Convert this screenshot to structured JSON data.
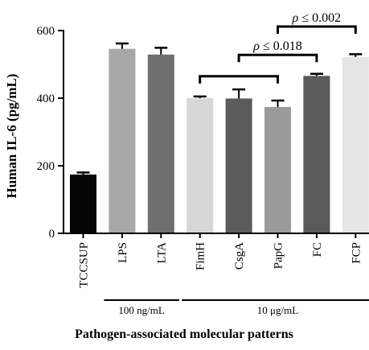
{
  "chart_data": {
    "type": "bar",
    "categories": [
      "TCCSUP",
      "LPS",
      "LTA",
      "FimH",
      "CsgA",
      "PapG",
      "FC",
      "FCP"
    ],
    "values": [
      174,
      546,
      529,
      400,
      399,
      374,
      466,
      522
    ],
    "errors": [
      6,
      16,
      20,
      5,
      27,
      19,
      6,
      8
    ],
    "colors": [
      "#050505",
      "#a8a8a8",
      "#6f6f6f",
      "#d7d7d7",
      "#5b5b5b",
      "#9a9a9a",
      "#5a5a5a",
      "#e6e6e6"
    ],
    "ylabel": "Human IL-6 (pg/mL)",
    "xlabel": "Pathogen-associated molecular patterns",
    "ylim": [
      0,
      600
    ],
    "yticks": [
      0,
      200,
      400,
      600
    ],
    "grid": false,
    "groups": [
      {
        "label": "100 ng/mL",
        "from": 1,
        "to": 2
      },
      {
        "label": "10 μg/mL",
        "from": 3,
        "to": 7
      }
    ],
    "significance": [
      {
        "from": 3,
        "to": 5,
        "y": 465,
        "label": ""
      },
      {
        "from": 4,
        "to": 6,
        "y": 528,
        "label": "ρ ≤ 0.018"
      },
      {
        "from": 5,
        "to": 7,
        "y": 612,
        "label": "ρ ≤ 0.002"
      }
    ]
  }
}
